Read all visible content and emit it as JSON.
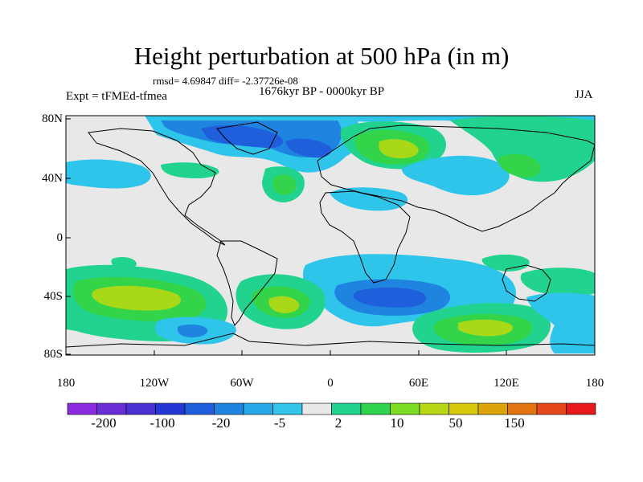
{
  "title": "Height perturbation at 500 hPa (in m)",
  "stats": "rmsd= 4.69847 diff= -2.37726e-08",
  "period": "1676kyr BP - 0000kyr BP",
  "experiment": "Expt = tFMEd-tfmea",
  "season": "JJA",
  "lat_labels": [
    "80N",
    "40N",
    "0",
    "40S",
    "80S"
  ],
  "lon_labels": [
    "180",
    "120W",
    "60W",
    "0",
    "60E",
    "120E",
    "180"
  ],
  "colorbar": {
    "labels": [
      "-200",
      "-100",
      "-20",
      "-5",
      "2",
      "10",
      "50",
      "150"
    ],
    "colors": [
      "#8a2be2",
      "#6a2ed6",
      "#4b2fd0",
      "#2436d4",
      "#1f5fdc",
      "#1e84e0",
      "#26a9e6",
      "#31c5e9",
      "#e8e8e8",
      "#21d38f",
      "#2fd34e",
      "#7bdc21",
      "#b8d613",
      "#d8c80b",
      "#dca30b",
      "#e27412",
      "#e5481a",
      "#e8191c"
    ]
  },
  "palette": {
    "land_background": "#e8e8e8",
    "light_blue": "#2fc5ea",
    "mid_blue": "#1e84e0",
    "deep_blue": "#1f5fdc",
    "green": "#21d38f",
    "lime": "#33d34a",
    "yellow_green": "#a8d818"
  }
}
